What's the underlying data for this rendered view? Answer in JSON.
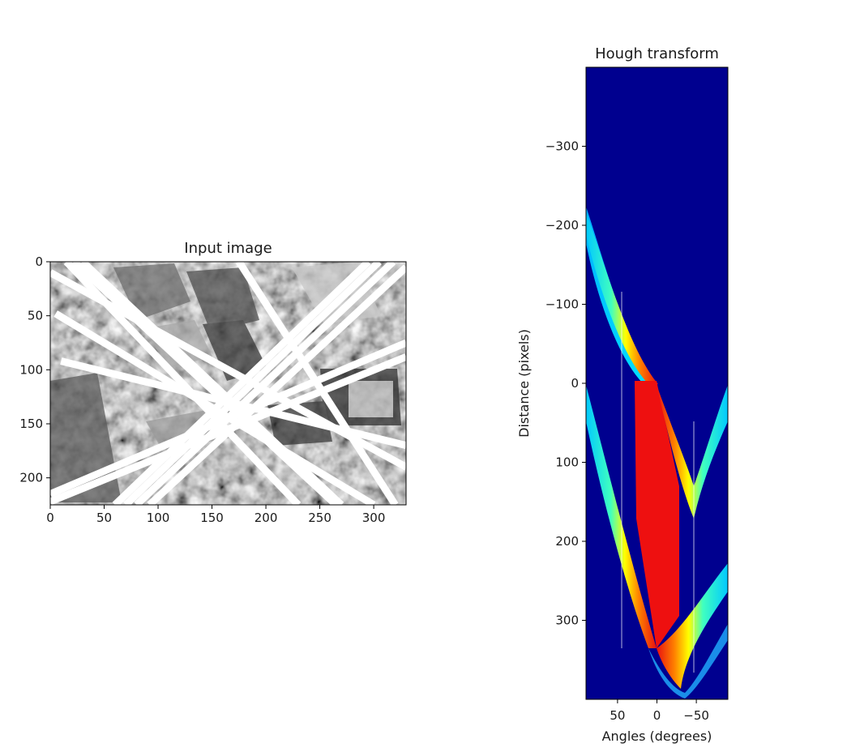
{
  "chart_data": [
    {
      "type": "heatmap",
      "title": "Input image",
      "xlabel": "",
      "ylabel": "",
      "x_ticks": [
        0,
        50,
        100,
        150,
        200,
        250,
        300
      ],
      "y_ticks": [
        0,
        50,
        100,
        150,
        200
      ],
      "xlim": [
        0,
        330
      ],
      "ylim": [
        225,
        0
      ],
      "colormap": "gray",
      "content": "grayscale aerial image of buildings with detected straight lines drawn in white",
      "lines": [
        [
          [
            15,
            0
          ],
          [
            230,
            225
          ]
        ],
        [
          [
            22,
            0
          ],
          [
            265,
            225
          ]
        ],
        [
          [
            30,
            0
          ],
          [
            270,
            225
          ]
        ],
        [
          [
            0,
            10
          ],
          [
            330,
            190
          ]
        ],
        [
          [
            5,
            48
          ],
          [
            300,
            225
          ]
        ],
        [
          [
            10,
            92
          ],
          [
            330,
            170
          ]
        ],
        [
          [
            0,
            215
          ],
          [
            330,
            75
          ]
        ],
        [
          [
            0,
            222
          ],
          [
            330,
            88
          ]
        ],
        [
          [
            60,
            225
          ],
          [
            295,
            0
          ]
        ],
        [
          [
            70,
            225
          ],
          [
            305,
            0
          ]
        ],
        [
          [
            80,
            225
          ],
          [
            318,
            0
          ]
        ],
        [
          [
            92,
            225
          ],
          [
            330,
            5
          ]
        ],
        [
          [
            175,
            0
          ],
          [
            320,
            225
          ]
        ]
      ]
    },
    {
      "type": "heatmap",
      "title": "Hough transform",
      "xlabel": "Angles (degrees)",
      "ylabel": "Distance (pixels)",
      "x_ticks": [
        50,
        0,
        -50
      ],
      "y_ticks": [
        -300,
        -200,
        -100,
        0,
        100,
        200,
        300
      ],
      "xlim": [
        90,
        -90
      ],
      "ylim": [
        400,
        -400
      ],
      "colormap": "jet",
      "background_color": "#00008f",
      "hot_color": "#ee1010"
    }
  ]
}
